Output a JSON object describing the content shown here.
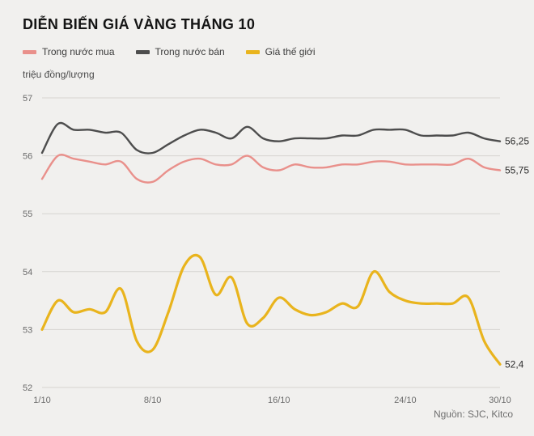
{
  "title": "DIỄN BIẾN GIÁ VÀNG THÁNG 10",
  "unit_label": "triệu đồng/lượng",
  "source": "Nguồn: SJC, Kitco",
  "colors": {
    "background": "#f1f0ee",
    "grid": "#d6d4d0",
    "tick_text": "#6b6b6b",
    "end_label_text": "#2b2b2b"
  },
  "chart_data": {
    "type": "line",
    "title": "DIỄN BIẾN GIÁ VÀNG THÁNG 10",
    "ylabel": "triệu đồng/lượng",
    "xlabel": "",
    "grid": true,
    "legend_position": "top",
    "ylim": [
      52,
      57
    ],
    "yticks": [
      52,
      53,
      54,
      55,
      56,
      57
    ],
    "xticks": [
      {
        "label": "1/10",
        "day": 1
      },
      {
        "label": "8/10",
        "day": 8
      },
      {
        "label": "16/10",
        "day": 16
      },
      {
        "label": "24/10",
        "day": 24
      },
      {
        "label": "30/10",
        "day": 30
      }
    ],
    "x": [
      1,
      2,
      3,
      4,
      5,
      6,
      7,
      8,
      9,
      10,
      11,
      12,
      13,
      14,
      15,
      16,
      17,
      18,
      19,
      20,
      21,
      22,
      23,
      24,
      25,
      26,
      27,
      28,
      29,
      30
    ],
    "series": [
      {
        "name": "Trong nước mua",
        "color": "#e9908b",
        "end_label": "55,75",
        "values": [
          55.6,
          56.0,
          55.95,
          55.9,
          55.85,
          55.9,
          55.6,
          55.55,
          55.75,
          55.9,
          55.95,
          55.85,
          55.85,
          56.0,
          55.8,
          55.75,
          55.85,
          55.8,
          55.8,
          55.85,
          55.85,
          55.9,
          55.9,
          55.85,
          55.85,
          55.85,
          55.85,
          55.95,
          55.8,
          55.75
        ]
      },
      {
        "name": "Trong nước bán",
        "color": "#4d4d4d",
        "end_label": "56,25",
        "values": [
          56.05,
          56.55,
          56.45,
          56.45,
          56.4,
          56.4,
          56.1,
          56.05,
          56.2,
          56.35,
          56.45,
          56.4,
          56.3,
          56.5,
          56.3,
          56.25,
          56.3,
          56.3,
          56.3,
          56.35,
          56.35,
          56.45,
          56.45,
          56.45,
          56.35,
          56.35,
          56.35,
          56.4,
          56.3,
          56.25
        ]
      },
      {
        "name": "Giá thế giới",
        "color": "#e9b41d",
        "end_label": "52,4",
        "values": [
          53.0,
          53.5,
          53.3,
          53.35,
          53.3,
          53.7,
          52.8,
          52.65,
          53.3,
          54.1,
          54.25,
          53.6,
          53.9,
          53.1,
          53.2,
          53.55,
          53.35,
          53.25,
          53.3,
          53.45,
          53.4,
          54.0,
          53.65,
          53.5,
          53.45,
          53.45,
          53.45,
          53.55,
          52.8,
          52.4
        ]
      }
    ]
  }
}
